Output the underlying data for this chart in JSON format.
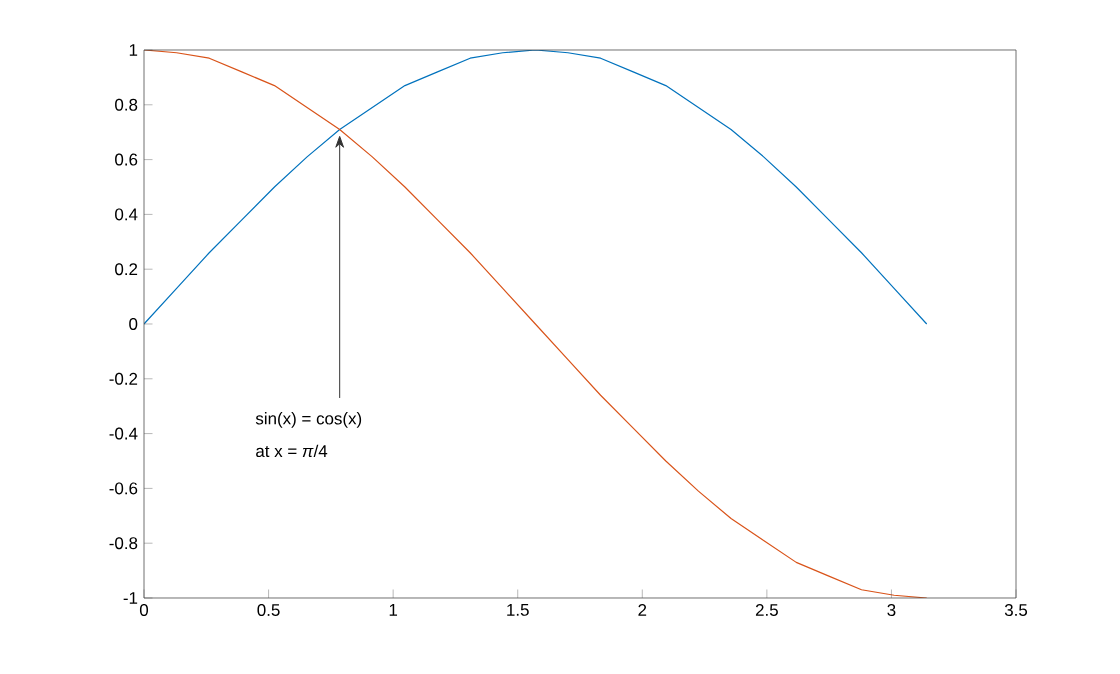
{
  "chart_data": {
    "type": "line",
    "x": [
      0,
      0.1309,
      0.2618,
      0.3927,
      0.5236,
      0.6545,
      0.7854,
      0.9163,
      1.0472,
      1.1781,
      1.309,
      1.4399,
      1.5708,
      1.7017,
      1.8326,
      1.9635,
      2.0944,
      2.2253,
      2.3562,
      2.4871,
      2.618,
      2.7489,
      2.8798,
      3.0107,
      3.1416
    ],
    "series": [
      {
        "color": "#0072bd",
        "values": [
          0,
          0.13,
          0.26,
          0.38,
          0.5,
          0.61,
          0.71,
          0.79,
          0.87,
          0.92,
          0.97,
          0.99,
          1,
          0.99,
          0.97,
          0.92,
          0.87,
          0.79,
          0.71,
          0.61,
          0.5,
          0.38,
          0.26,
          0.13,
          0
        ]
      },
      {
        "color": "#d95319",
        "values": [
          1,
          0.99,
          0.97,
          0.92,
          0.87,
          0.79,
          0.71,
          0.61,
          0.5,
          0.38,
          0.26,
          0.13,
          0,
          -0.13,
          -0.26,
          -0.38,
          -0.5,
          -0.61,
          -0.71,
          -0.79,
          -0.87,
          -0.92,
          -0.97,
          -0.99,
          -1
        ]
      }
    ],
    "xlim": [
      0,
      3.5
    ],
    "ylim": [
      -1,
      1
    ],
    "xticks": [
      0,
      0.5,
      1,
      1.5,
      2,
      2.5,
      3,
      3.5
    ],
    "yticks": [
      -1,
      -0.8,
      -0.6,
      -0.4,
      -0.2,
      0,
      0.2,
      0.4,
      0.6,
      0.8,
      1
    ],
    "annotations": [
      {
        "text": "sin(x) = cos(x)",
        "x": 0.7854,
        "y": 0.71
      },
      "at x = *π*/4"
    ],
    "marker": "none",
    "line_style": "solid"
  }
}
